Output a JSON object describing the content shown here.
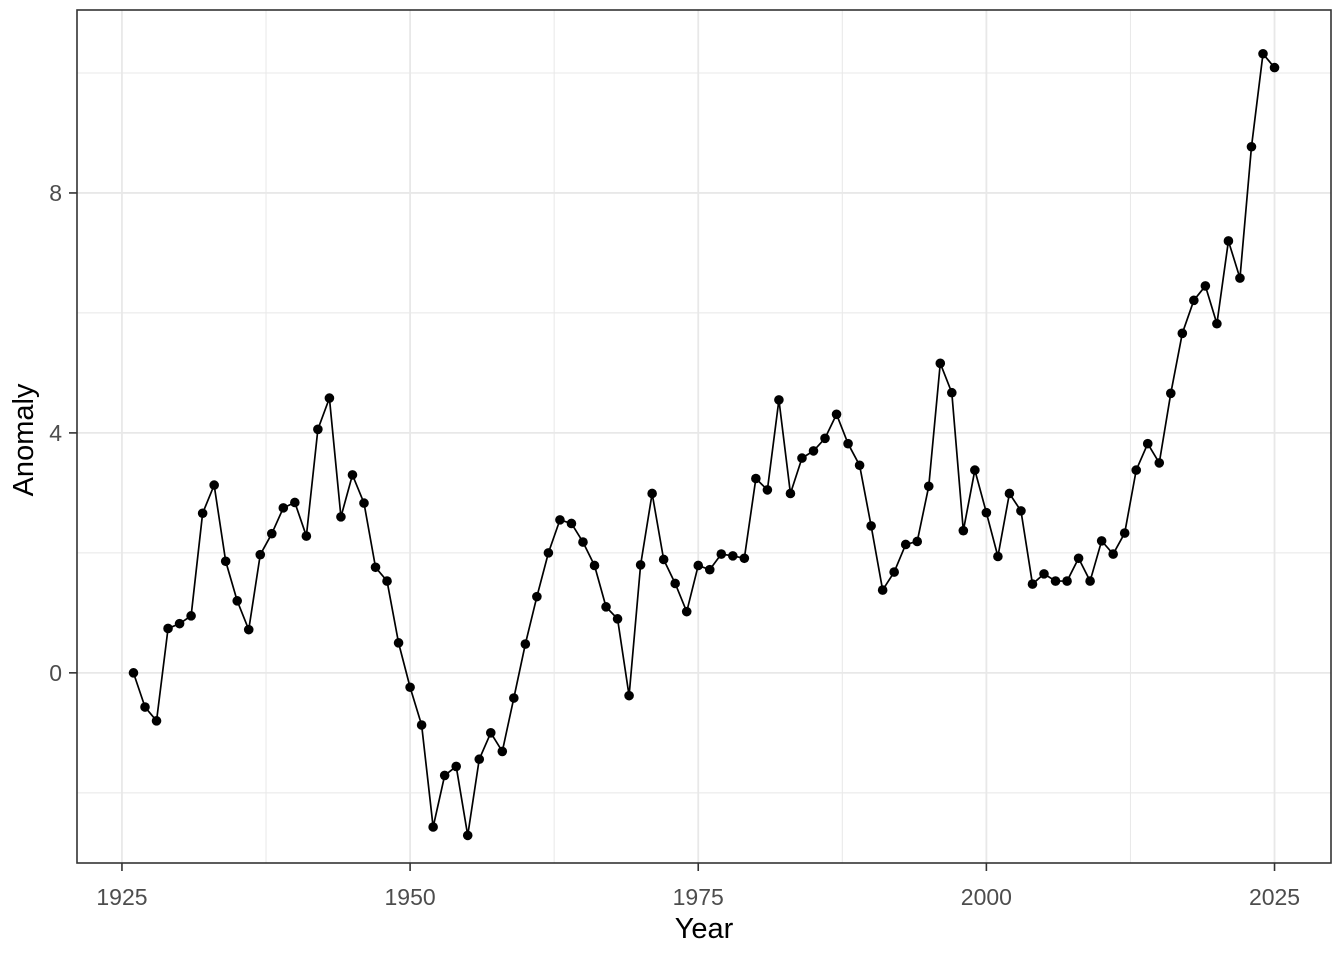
{
  "page": {
    "background": "#ffffff"
  },
  "chart_data": {
    "type": "line",
    "title": "",
    "xlabel": "Year",
    "ylabel": "Anomaly",
    "legend": "none",
    "grid": true,
    "marker": "filled-circle",
    "xlim": [
      1921.1,
      2029.9
    ],
    "ylim": [
      -3.17,
      11.05
    ],
    "x_ticks": [
      1925,
      1950,
      1975,
      2000,
      2025
    ],
    "x_tick_labels": [
      "1925",
      "1950",
      "1975",
      "2000",
      "2025"
    ],
    "x_minor_ticks": [
      1937.5,
      1962.5,
      1987.5,
      2012.5
    ],
    "y_ticks": [
      0,
      4,
      8
    ],
    "y_tick_labels": [
      "0",
      "4",
      "8"
    ],
    "y_minor_ticks": [
      -2,
      2,
      6,
      10
    ],
    "series": [
      {
        "name": "Anomaly",
        "x": [
          1926,
          1927,
          1928,
          1929,
          1930,
          1931,
          1932,
          1933,
          1934,
          1935,
          1936,
          1937,
          1938,
          1939,
          1940,
          1941,
          1942,
          1943,
          1944,
          1945,
          1946,
          1947,
          1948,
          1949,
          1950,
          1951,
          1952,
          1953,
          1954,
          1955,
          1956,
          1957,
          1958,
          1959,
          1960,
          1961,
          1962,
          1963,
          1964,
          1965,
          1966,
          1967,
          1968,
          1969,
          1970,
          1971,
          1972,
          1973,
          1974,
          1975,
          1976,
          1977,
          1978,
          1979,
          1980,
          1981,
          1982,
          1983,
          1984,
          1985,
          1986,
          1987,
          1988,
          1989,
          1990,
          1991,
          1992,
          1993,
          1994,
          1995,
          1996,
          1997,
          1998,
          1999,
          2000,
          2001,
          2002,
          2003,
          2004,
          2005,
          2006,
          2007,
          2008,
          2009,
          2010,
          2011,
          2012,
          2013,
          2014,
          2015,
          2016,
          2017,
          2018,
          2019,
          2020,
          2021,
          2022,
          2023,
          2024,
          2025
        ],
        "y": [
          0.0,
          -0.57,
          -0.8,
          0.74,
          0.82,
          0.95,
          2.66,
          3.13,
          1.86,
          1.2,
          0.72,
          1.97,
          2.32,
          2.75,
          2.84,
          2.28,
          4.06,
          4.58,
          2.6,
          3.3,
          2.83,
          1.76,
          1.53,
          0.5,
          -0.24,
          -0.87,
          -2.57,
          -1.71,
          -1.56,
          -2.71,
          -1.44,
          -1.0,
          -1.31,
          -0.42,
          0.48,
          1.27,
          2.0,
          2.55,
          2.49,
          2.18,
          1.79,
          1.1,
          0.9,
          -0.38,
          1.8,
          2.99,
          1.89,
          1.49,
          1.02,
          1.79,
          1.72,
          1.98,
          1.95,
          1.91,
          3.24,
          3.05,
          4.55,
          2.99,
          3.58,
          3.7,
          3.91,
          4.31,
          3.82,
          3.46,
          2.45,
          1.38,
          1.68,
          2.14,
          2.19,
          3.11,
          5.16,
          4.67,
          2.37,
          3.38,
          2.67,
          1.94,
          2.99,
          2.7,
          1.48,
          1.65,
          1.53,
          1.53,
          1.91,
          1.53,
          2.2,
          1.98,
          2.33,
          3.38,
          3.82,
          3.5,
          4.66,
          5.66,
          6.21,
          6.45,
          5.82,
          7.2,
          6.58,
          8.77,
          10.32,
          10.09
        ]
      }
    ],
    "colors": {
      "line": "#000000",
      "point": "#000000",
      "grid": "#e8e8e8",
      "panel_border": "#333333",
      "tick": "#333333",
      "tick_label": "#4d4d4d",
      "axis_title": "#000000",
      "panel_background": "#ffffff"
    }
  }
}
